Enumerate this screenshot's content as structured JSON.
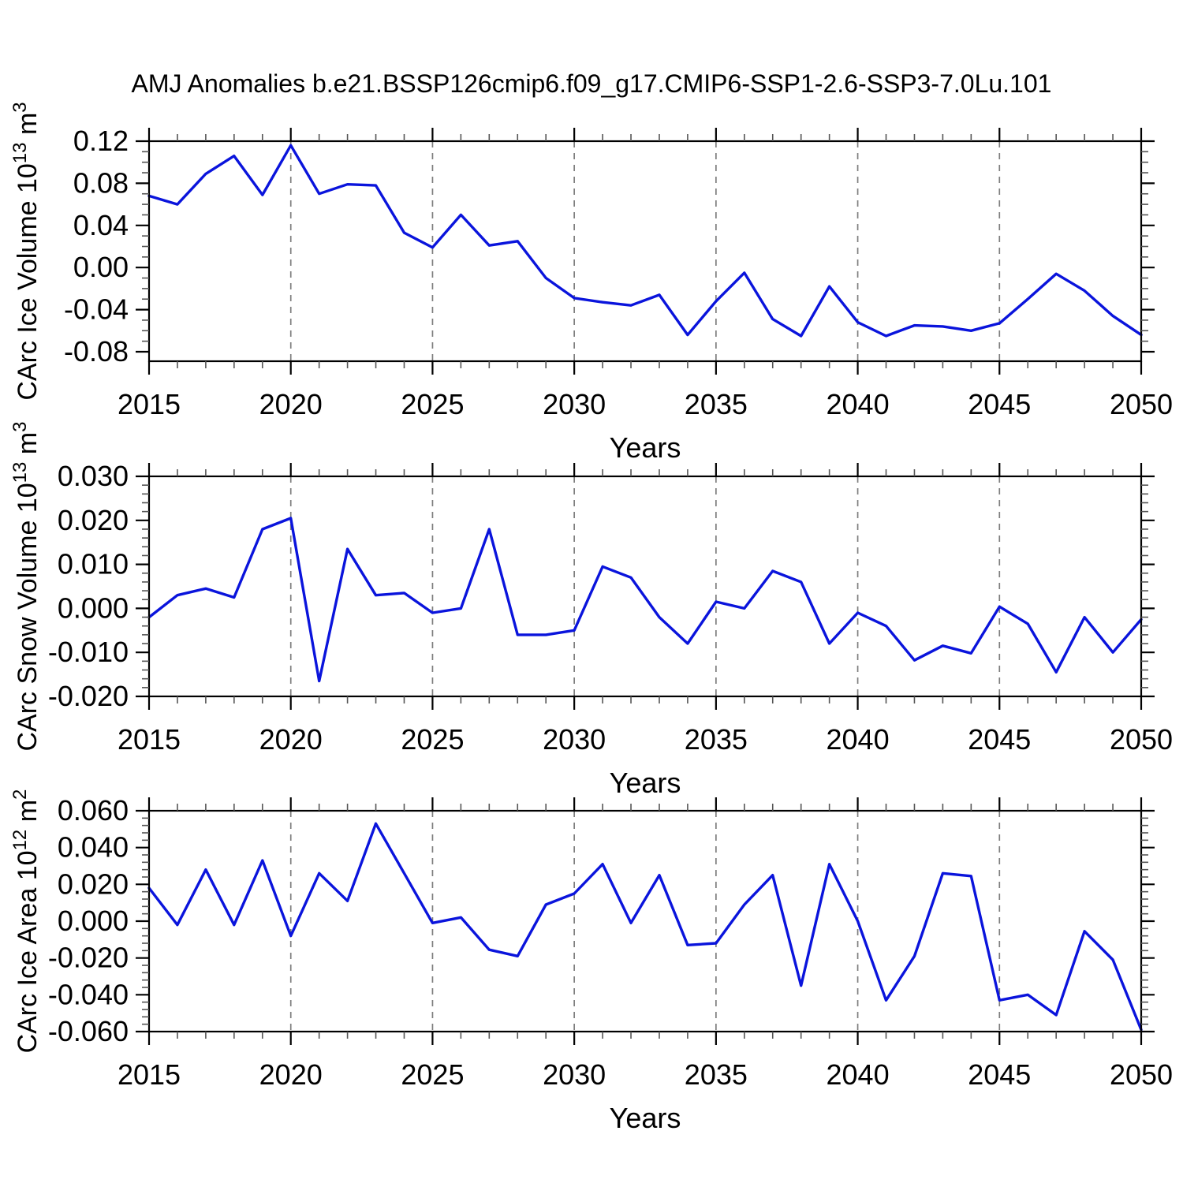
{
  "title": "AMJ Anomalies b.e21.BSSP126cmip6.f09_g17.CMIP6-SSP1-2.6-SSP3-7.0Lu.101",
  "line_color": "#0a14dc",
  "grid_color": "#7d7d7d",
  "axis_color": "#000000",
  "chart_data": [
    {
      "type": "line",
      "id": "ice-volume",
      "ylabel": "CArc Ice Volume 10^13 m^3",
      "ylabel_parts": {
        "base": "CArc Ice Volume 10",
        "exp": "13",
        "unit": " m",
        "unit_exp": "3"
      },
      "xlabel": "Years",
      "x": [
        2015,
        2016,
        2017,
        2018,
        2019,
        2020,
        2021,
        2022,
        2023,
        2024,
        2025,
        2026,
        2027,
        2028,
        2029,
        2030,
        2031,
        2032,
        2033,
        2034,
        2035,
        2036,
        2037,
        2038,
        2039,
        2040,
        2041,
        2042,
        2043,
        2044,
        2045,
        2046,
        2047,
        2048,
        2049,
        2050
      ],
      "values": [
        0.068,
        0.06,
        0.089,
        0.106,
        0.069,
        0.116,
        0.07,
        0.079,
        0.078,
        0.033,
        0.019,
        0.05,
        0.021,
        0.025,
        -0.01,
        -0.029,
        -0.033,
        -0.036,
        -0.026,
        -0.064,
        -0.032,
        -0.005,
        -0.049,
        -0.065,
        -0.018,
        -0.052,
        -0.065,
        -0.055,
        -0.056,
        -0.06,
        -0.053,
        -0.03,
        -0.006,
        -0.022,
        -0.046,
        -0.064
      ],
      "xlim": [
        2015,
        2050
      ],
      "ylim": [
        -0.089,
        0.12
      ],
      "xticks": [
        2015,
        2020,
        2025,
        2030,
        2035,
        2040,
        2045,
        2050
      ],
      "xminor_step": 1,
      "yticks": [
        0.12,
        0.08,
        0.04,
        0.0,
        -0.04,
        -0.08
      ],
      "yminor_step": 0.01,
      "ytick_decimals": 2,
      "grid_x": [
        2020,
        2025,
        2030,
        2035,
        2040,
        2045
      ],
      "grid_style": "vertical-dashed",
      "legend": "none"
    },
    {
      "type": "line",
      "id": "snow-volume",
      "ylabel": "CArc Snow Volume 10^13 m^3",
      "ylabel_parts": {
        "base": "CArc Snow Volume 10",
        "exp": "13",
        "unit": " m",
        "unit_exp": "3"
      },
      "xlabel": "Years",
      "x": [
        2015,
        2016,
        2017,
        2018,
        2019,
        2020,
        2021,
        2022,
        2023,
        2024,
        2025,
        2026,
        2027,
        2028,
        2029,
        2030,
        2031,
        2032,
        2033,
        2034,
        2035,
        2036,
        2037,
        2038,
        2039,
        2040,
        2041,
        2042,
        2043,
        2044,
        2045,
        2046,
        2047,
        2048,
        2049,
        2050
      ],
      "values": [
        -0.002,
        0.003,
        0.0045,
        0.0025,
        0.018,
        0.0205,
        -0.0165,
        0.0135,
        0.003,
        0.0035,
        -0.001,
        0.0,
        0.018,
        -0.006,
        -0.006,
        -0.005,
        0.0095,
        0.007,
        -0.002,
        -0.008,
        0.0015,
        0.0,
        0.0085,
        0.006,
        -0.008,
        -0.001,
        -0.004,
        -0.0118,
        -0.0085,
        -0.0102,
        0.0004,
        -0.0035,
        -0.0145,
        -0.002,
        -0.01,
        -0.0025
      ],
      "xlim": [
        2015,
        2050
      ],
      "ylim": [
        -0.02,
        0.03
      ],
      "xticks": [
        2015,
        2020,
        2025,
        2030,
        2035,
        2040,
        2045,
        2050
      ],
      "xminor_step": 1,
      "yticks": [
        0.03,
        0.02,
        0.01,
        0.0,
        -0.01,
        -0.02
      ],
      "yminor_step": 0.002,
      "ytick_decimals": 3,
      "grid_x": [
        2020,
        2025,
        2030,
        2035,
        2040,
        2045
      ],
      "grid_style": "vertical-dashed",
      "legend": "none"
    },
    {
      "type": "line",
      "id": "ice-area",
      "ylabel": "CArc Ice Area 10^12 m^2",
      "ylabel_parts": {
        "base": "CArc Ice Area 10",
        "exp": "12",
        "unit": " m",
        "unit_exp": "2"
      },
      "xlabel": "Years",
      "x": [
        2015,
        2016,
        2017,
        2018,
        2019,
        2020,
        2021,
        2022,
        2023,
        2024,
        2025,
        2026,
        2027,
        2028,
        2029,
        2030,
        2031,
        2032,
        2033,
        2034,
        2035,
        2036,
        2037,
        2038,
        2039,
        2040,
        2041,
        2042,
        2043,
        2044,
        2045,
        2046,
        2047,
        2048,
        2049,
        2050
      ],
      "values": [
        0.018,
        -0.002,
        0.028,
        -0.002,
        0.033,
        -0.008,
        0.026,
        0.011,
        0.053,
        0.026,
        -0.001,
        0.002,
        -0.0155,
        -0.019,
        0.009,
        0.015,
        0.031,
        -0.001,
        0.025,
        -0.013,
        -0.012,
        0.009,
        0.025,
        -0.035,
        0.031,
        0.0,
        -0.043,
        -0.019,
        0.026,
        0.0245,
        -0.043,
        -0.04,
        -0.051,
        -0.0055,
        -0.021,
        -0.059
      ],
      "xlim": [
        2015,
        2050
      ],
      "ylim": [
        -0.06,
        0.06
      ],
      "xticks": [
        2015,
        2020,
        2025,
        2030,
        2035,
        2040,
        2045,
        2050
      ],
      "xminor_step": 1,
      "yticks": [
        0.06,
        0.04,
        0.02,
        0.0,
        -0.02,
        -0.04,
        -0.06
      ],
      "yminor_step": 0.004,
      "ytick_decimals": 3,
      "grid_x": [
        2020,
        2025,
        2030,
        2035,
        2040,
        2045
      ],
      "grid_style": "vertical-dashed",
      "legend": "none"
    }
  ]
}
